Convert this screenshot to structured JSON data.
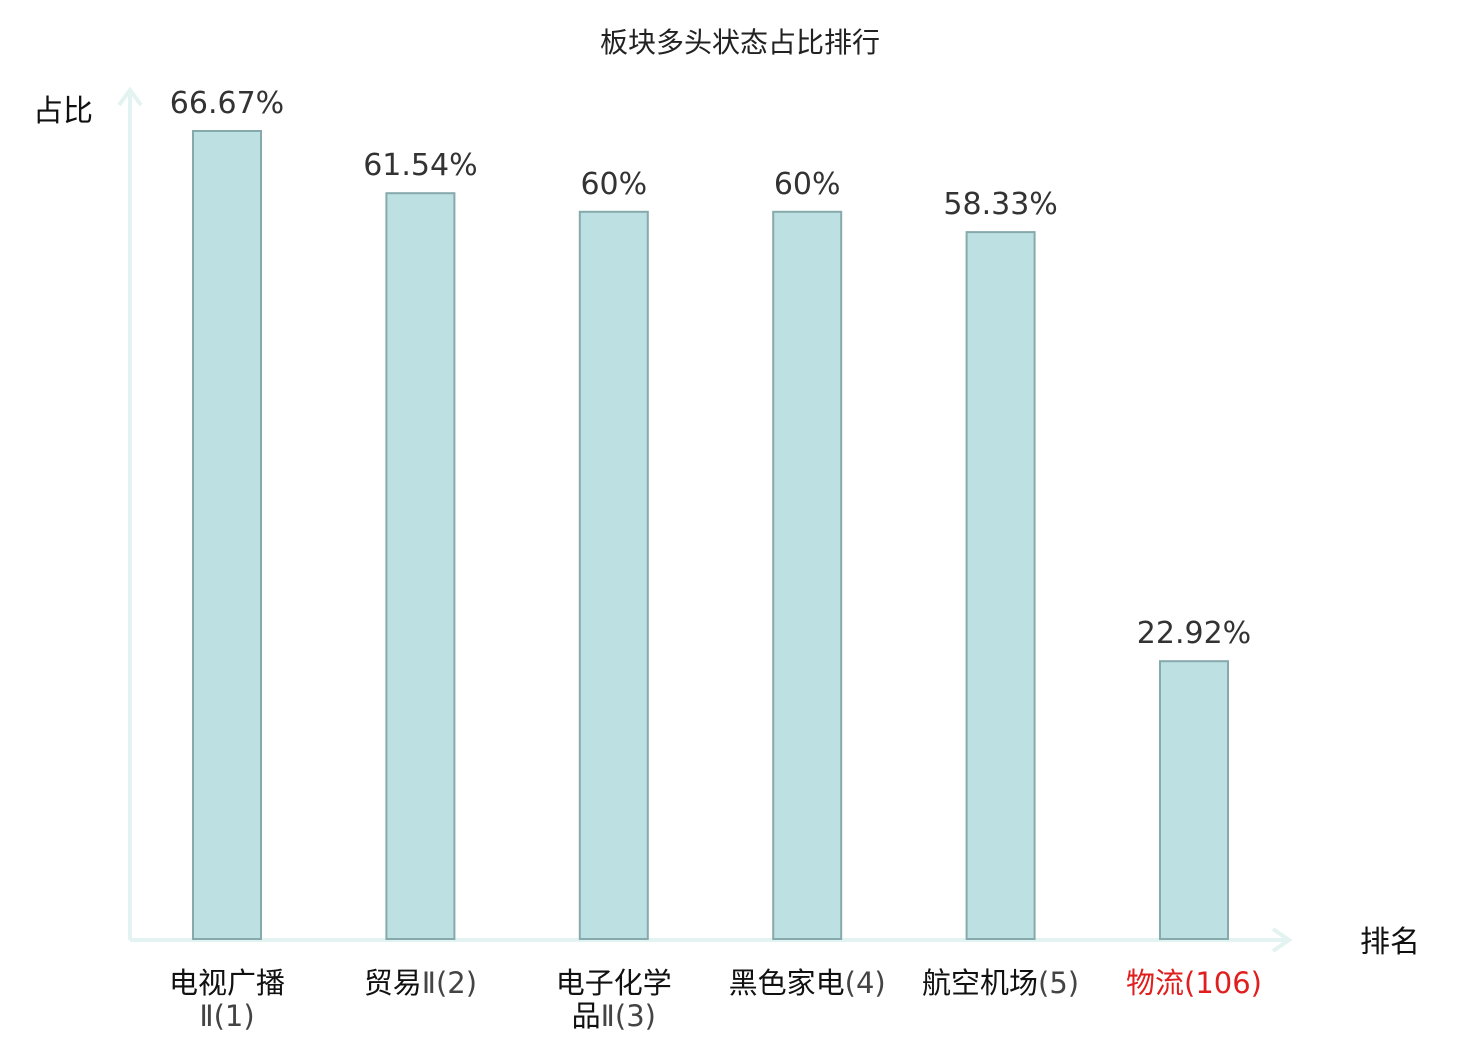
{
  "chart_data": {
    "type": "bar",
    "title": "板块多头状态占比排行",
    "ylabel": "占比",
    "xlabel": "排名",
    "unit": "%",
    "ylim": [
      0,
      66.67
    ],
    "grid": false,
    "legend": "none",
    "colors": {
      "bar_fill": "#bde0e3",
      "bar_stroke": "#86a9ab",
      "axis": "#e2f3f1",
      "highlight_label": "#e01e1e"
    },
    "categories": [
      {
        "name_lines": [
          "电视广播",
          ""
        ],
        "rank_text": "Ⅱ(1)",
        "value": 66.67,
        "value_label": "66.67%",
        "highlight": false
      },
      {
        "name_lines": [
          "贸易"
        ],
        "rank_text": "Ⅱ(2)",
        "value": 61.54,
        "value_label": "61.54%",
        "highlight": false
      },
      {
        "name_lines": [
          "电子化学",
          "品"
        ],
        "rank_text": "Ⅱ(3)",
        "value": 60,
        "value_label": "60%",
        "highlight": false
      },
      {
        "name_lines": [
          "黑色家电"
        ],
        "rank_text": "(4)",
        "value": 60,
        "value_label": "60%",
        "highlight": false
      },
      {
        "name_lines": [
          "航空机场"
        ],
        "rank_text": "(5)",
        "value": 58.33,
        "value_label": "58.33%",
        "highlight": false
      },
      {
        "name_lines": [
          "物流"
        ],
        "rank_text": "(106)",
        "value": 22.92,
        "value_label": "22.92%",
        "highlight": true
      }
    ]
  }
}
